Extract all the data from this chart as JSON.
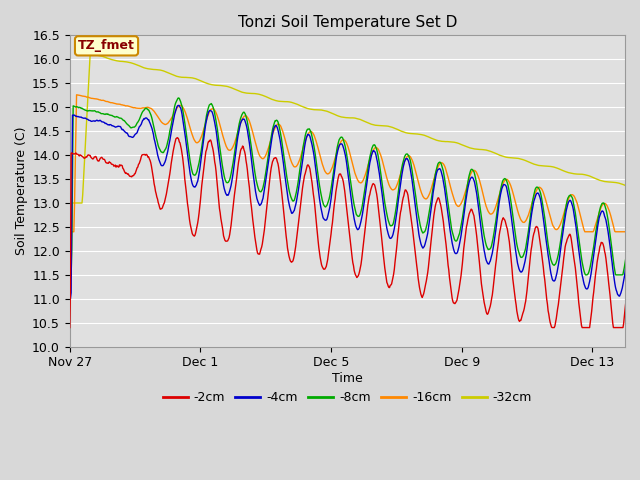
{
  "title": "Tonzi Soil Temperature Set D",
  "xlabel": "Time",
  "ylabel": "Soil Temperature (C)",
  "ylim": [
    10.0,
    16.5
  ],
  "yticks": [
    10.0,
    10.5,
    11.0,
    11.5,
    12.0,
    12.5,
    13.0,
    13.5,
    14.0,
    14.5,
    15.0,
    15.5,
    16.0,
    16.5
  ],
  "background_color": "#d8d8d8",
  "plot_bg_color": "#e0e0e0",
  "grid_color": "#ffffff",
  "series_colors": [
    "#dd0000",
    "#0000cc",
    "#00aa00",
    "#ff8800",
    "#cccc00"
  ],
  "series_labels": [
    "-2cm",
    "-4cm",
    "-8cm",
    "-16cm",
    "-32cm"
  ],
  "legend_label": "TZ_fmet",
  "legend_bg": "#ffffcc",
  "legend_border": "#cc8800",
  "xtick_labels": [
    "Nov 27",
    "Dec 1",
    "Dec 5",
    "Dec 9",
    "Dec 13"
  ],
  "xtick_days": [
    0,
    4,
    8,
    12,
    16
  ],
  "linewidth": 1.0,
  "figsize": [
    6.4,
    4.8
  ],
  "dpi": 100
}
